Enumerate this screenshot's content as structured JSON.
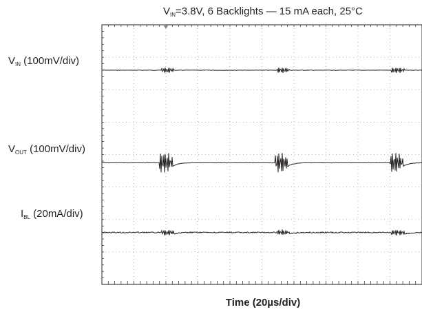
{
  "chart_data": {
    "type": "line",
    "title_parts": [
      "V",
      "IN",
      "=3.8V, 6 Backlights — 15 mA each, 25°C"
    ],
    "xlabel": "Time (20µs/div)",
    "grid": true,
    "x_divisions": 10,
    "y_divisions": 8,
    "series": [
      {
        "name_main": "V",
        "name_sub": "IN",
        "name_rest": " (100mV/div)",
        "baseline_div": 6.6,
        "ripple_at_div": [
          2.15,
          5.75,
          9.35
        ],
        "ripple_amp_div": 0.08,
        "step_div": 0.0
      },
      {
        "name_main": "V",
        "name_sub": "OUT",
        "name_rest": " (100mV/div)",
        "baseline_div": 3.75,
        "ripple_at_div": [
          2.1,
          5.7,
          9.3
        ],
        "ripple_amp_div": 0.3,
        "step_div": 0.12
      },
      {
        "name_main": "I",
        "name_sub": "BL",
        "name_rest": " (20mA/div)",
        "baseline_div": 1.6,
        "ripple_at_div": [
          2.15,
          5.75,
          9.35
        ],
        "ripple_amp_div": 0.08,
        "step_div": 0.05
      }
    ]
  }
}
